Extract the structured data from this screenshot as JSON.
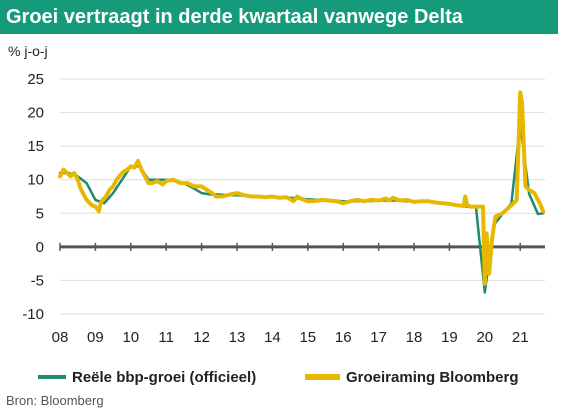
{
  "title": "Groei vertraagt in derde kwartaal vanwege Delta",
  "source": "Bron: Bloomberg",
  "colors": {
    "title_bg": "#159a7c",
    "official": "#1f8a70",
    "estimate": "#e8b800",
    "zero_line": "#555555",
    "grid": "#dddddd"
  },
  "chart_data": {
    "type": "line",
    "title": "Groei vertraagt in derde kwartaal vanwege Delta",
    "ylabel": "% j-o-j",
    "xlabel": "",
    "ylim": [
      -10,
      25
    ],
    "xlim": [
      2008.0,
      2021.7
    ],
    "y_ticks": [
      "25",
      "20",
      "15",
      "10",
      "5",
      "0",
      "-5",
      "-10"
    ],
    "y_tick_values": [
      25,
      20,
      15,
      10,
      5,
      0,
      -5,
      -10
    ],
    "x_ticks": [
      "08",
      "09",
      "10",
      "11",
      "12",
      "13",
      "14",
      "15",
      "16",
      "17",
      "18",
      "19",
      "20",
      "21"
    ],
    "x_tick_values": [
      2008,
      2009,
      2010,
      2011,
      2012,
      2013,
      2014,
      2015,
      2016,
      2017,
      2018,
      2019,
      2020,
      2021
    ],
    "grid": "horizontal",
    "legend_position": "bottom",
    "series": [
      {
        "name": "Reële bbp-groei (officieel)",
        "color": "#1f8a70",
        "x": [
          2008.0,
          2008.25,
          2008.5,
          2008.75,
          2009.0,
          2009.25,
          2009.5,
          2009.75,
          2010.0,
          2010.25,
          2010.5,
          2010.75,
          2011.0,
          2011.25,
          2011.5,
          2011.75,
          2012.0,
          2012.25,
          2012.5,
          2012.75,
          2013.0,
          2013.25,
          2013.5,
          2013.75,
          2014.0,
          2014.25,
          2014.5,
          2014.75,
          2015.0,
          2015.25,
          2015.5,
          2015.75,
          2016.0,
          2016.25,
          2016.5,
          2016.75,
          2017.0,
          2017.25,
          2017.5,
          2017.75,
          2018.0,
          2018.25,
          2018.5,
          2018.75,
          2019.0,
          2019.25,
          2019.5,
          2019.75,
          2020.0,
          2020.25,
          2020.5,
          2020.75,
          2021.0,
          2021.25,
          2021.5,
          2021.65
        ],
        "y": [
          11.0,
          11.0,
          10.5,
          9.5,
          7.0,
          6.5,
          8.0,
          10.0,
          12.0,
          12.0,
          10.0,
          10.0,
          10.0,
          9.8,
          9.5,
          8.8,
          8.0,
          7.8,
          7.8,
          7.7,
          7.7,
          7.6,
          7.5,
          7.5,
          7.4,
          7.4,
          7.3,
          7.2,
          7.1,
          7.0,
          6.9,
          6.9,
          6.8,
          6.8,
          6.8,
          6.8,
          6.9,
          6.9,
          6.9,
          6.8,
          6.8,
          6.8,
          6.7,
          6.5,
          6.4,
          6.2,
          6.0,
          5.9,
          -6.8,
          3.2,
          4.9,
          6.5,
          18.3,
          7.9,
          4.9,
          5.0
        ]
      },
      {
        "name": "Groeiraming Bloomberg",
        "color": "#e8b800",
        "x": [
          2008.0,
          2008.1,
          2008.2,
          2008.3,
          2008.4,
          2008.5,
          2008.6,
          2008.75,
          2008.9,
          2009.0,
          2009.1,
          2009.15,
          2009.2,
          2009.3,
          2009.4,
          2009.5,
          2009.6,
          2009.75,
          2009.9,
          2010.0,
          2010.1,
          2010.2,
          2010.3,
          2010.4,
          2010.5,
          2010.6,
          2010.75,
          2010.9,
          2011.0,
          2011.2,
          2011.4,
          2011.6,
          2011.8,
          2012.0,
          2012.2,
          2012.3,
          2012.4,
          2012.6,
          2012.8,
          2013.0,
          2013.2,
          2013.4,
          2013.6,
          2013.8,
          2014.0,
          2014.2,
          2014.4,
          2014.6,
          2014.7,
          2014.8,
          2015.0,
          2015.2,
          2015.4,
          2015.6,
          2015.8,
          2016.0,
          2016.2,
          2016.4,
          2016.6,
          2016.8,
          2017.0,
          2017.2,
          2017.3,
          2017.4,
          2017.6,
          2017.8,
          2018.0,
          2018.2,
          2018.4,
          2018.6,
          2018.8,
          2019.0,
          2019.2,
          2019.4,
          2019.45,
          2019.5,
          2019.6,
          2019.8,
          2019.95,
          2020.0,
          2020.05,
          2020.12,
          2020.2,
          2020.3,
          2020.5,
          2020.75,
          2020.9,
          2021.0,
          2021.05,
          2021.1,
          2021.15,
          2021.25,
          2021.4,
          2021.55,
          2021.65
        ],
        "y": [
          10.5,
          11.5,
          11.0,
          10.5,
          11.0,
          10.0,
          8.5,
          7.0,
          6.2,
          6.0,
          5.3,
          6.5,
          7.0,
          7.5,
          8.5,
          9.0,
          10.0,
          11.0,
          11.5,
          12.0,
          11.8,
          12.8,
          11.5,
          10.5,
          9.5,
          9.5,
          9.8,
          9.3,
          9.8,
          10.0,
          9.5,
          9.5,
          9.0,
          9.0,
          8.3,
          8.0,
          7.5,
          7.5,
          7.8,
          8.0,
          7.7,
          7.5,
          7.5,
          7.4,
          7.5,
          7.3,
          7.4,
          6.8,
          7.5,
          7.2,
          6.8,
          6.8,
          7.0,
          6.9,
          6.8,
          6.5,
          6.8,
          7.0,
          6.8,
          7.0,
          6.9,
          7.2,
          6.9,
          7.3,
          6.9,
          7.0,
          6.7,
          6.8,
          6.8,
          6.6,
          6.5,
          6.4,
          6.2,
          6.1,
          7.5,
          6.2,
          6.0,
          6.0,
          6.0,
          -5.5,
          2.0,
          -4.0,
          1.0,
          4.5,
          5.0,
          6.2,
          7.0,
          23.0,
          21.5,
          15.0,
          9.0,
          8.5,
          8.0,
          6.5,
          5.3
        ]
      }
    ]
  }
}
